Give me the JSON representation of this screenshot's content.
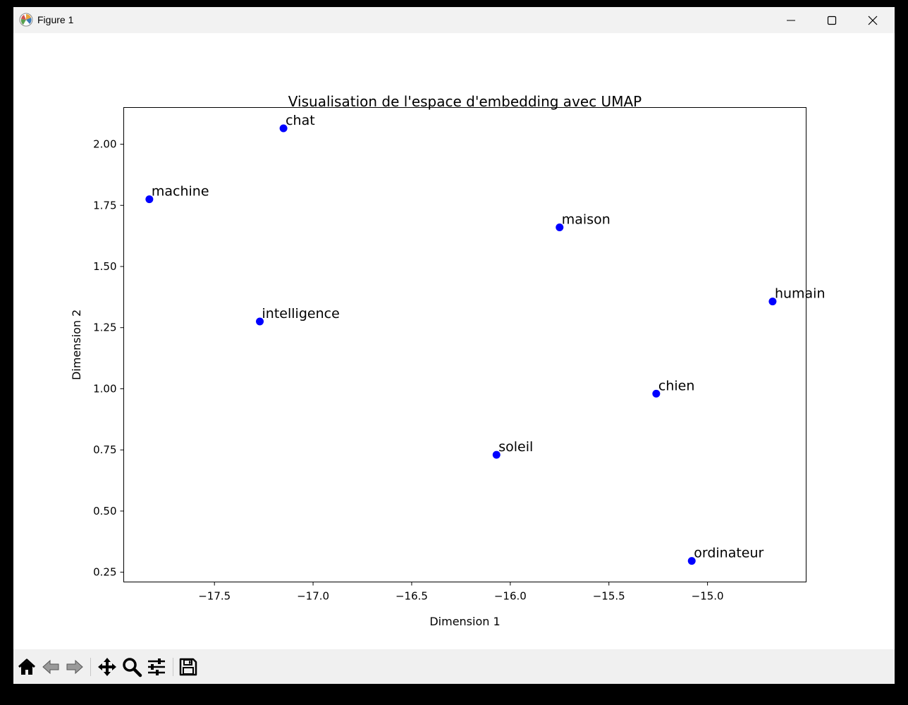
{
  "window": {
    "title": "Figure 1"
  },
  "chart_data": {
    "type": "scatter",
    "title": "Visualisation de l'espace d'embedding avec UMAP",
    "xlabel": "Dimension 1",
    "ylabel": "Dimension 2",
    "xlim": [
      -17.96,
      -14.5
    ],
    "ylim": [
      0.21,
      2.15
    ],
    "xticks": [
      -17.5,
      -17.0,
      -16.5,
      -16.0,
      -15.5,
      -15.0
    ],
    "xtick_labels": [
      "−17.5",
      "−17.0",
      "−16.5",
      "−16.0",
      "−15.5",
      "−15.0"
    ],
    "yticks": [
      0.25,
      0.5,
      0.75,
      1.0,
      1.25,
      1.5,
      1.75,
      2.0
    ],
    "ytick_labels": [
      "0.25",
      "0.50",
      "0.75",
      "1.00",
      "1.25",
      "1.50",
      "1.75",
      "2.00"
    ],
    "grid": false,
    "marker_color": "#0000ff",
    "points": [
      {
        "label": "chat",
        "x": -17.15,
        "y": 2.065
      },
      {
        "label": "machine",
        "x": -17.83,
        "y": 1.775
      },
      {
        "label": "maison",
        "x": -15.75,
        "y": 1.66
      },
      {
        "label": "humain",
        "x": -14.67,
        "y": 1.357
      },
      {
        "label": "intelligence",
        "x": -17.27,
        "y": 1.275
      },
      {
        "label": "chien",
        "x": -15.26,
        "y": 0.98
      },
      {
        "label": "soleil",
        "x": -16.07,
        "y": 0.73
      },
      {
        "label": "ordinateur",
        "x": -15.08,
        "y": 0.296
      }
    ]
  },
  "toolbar": {
    "buttons": [
      {
        "name": "home-button",
        "icon": "home-icon"
      },
      {
        "name": "back-button",
        "icon": "arrow-left-icon"
      },
      {
        "name": "forward-button",
        "icon": "arrow-right-icon"
      },
      {
        "name": "pan-button",
        "icon": "move-icon"
      },
      {
        "name": "zoom-button",
        "icon": "magnifier-icon"
      },
      {
        "name": "configure-subplots-button",
        "icon": "sliders-icon"
      },
      {
        "name": "save-button",
        "icon": "floppy-disk-icon"
      }
    ]
  }
}
